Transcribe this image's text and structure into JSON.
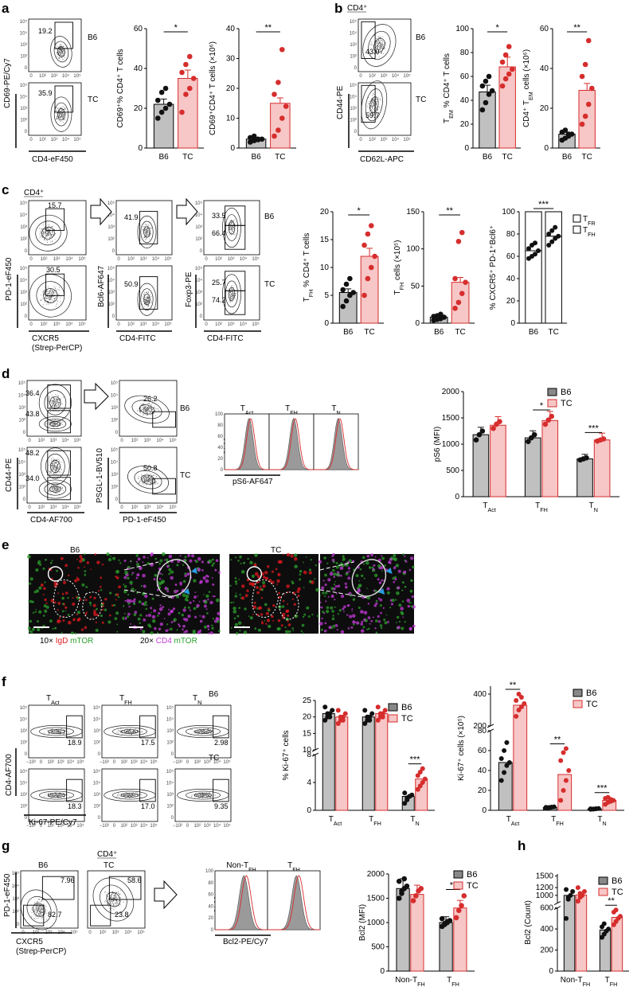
{
  "colors": {
    "b6": "#3b3b3b",
    "tc": "#d62d2d",
    "tcFill": "#f7c6c6",
    "b6Fill": "#c0c0c0",
    "igd": "#e0191f",
    "mtor": "#2ca02c",
    "cd4": "#c43ad8",
    "arrow": "#2a9de0"
  },
  "panel_labels": {
    "a": "a",
    "b": "b",
    "c": "c",
    "d": "d",
    "e": "e",
    "f": "f",
    "g": "g",
    "h": "h"
  },
  "groups": {
    "b6": "B6",
    "tc": "TC"
  },
  "flow_ticks": [
    "0",
    "10²",
    "10³",
    "10⁴",
    "10⁵"
  ],
  "flow_ticks_neg": [
    "−10²",
    "0",
    "10²",
    "10³",
    "10⁴",
    "10⁵"
  ],
  "panel_a": {
    "ylabel": "CD69-PE/Cy7",
    "xlabel": "CD4-eF450",
    "gate_b6": "19.2",
    "gate_tc": "35.9",
    "chart1": {
      "ylabel": "CD69⁺% CD4⁺ T cells",
      "yticks": [
        "0",
        "20",
        "40",
        "60"
      ],
      "sig": "*"
    },
    "chart2": {
      "ylabel": "CD69⁺CD4⁺ T cells (×10⁶)",
      "yticks": [
        "0",
        "10",
        "20",
        "30",
        "40"
      ],
      "sig": "**"
    }
  },
  "panel_b": {
    "header": "CD4⁺",
    "ylabel": "CD44-PE",
    "xlabel": "CD62L-APC",
    "gate_b6": "43.0",
    "gate_tc": "59.7",
    "chart1": {
      "ylabel": "T_EM % CD4⁺ T cells",
      "yticks": [
        "0",
        "20",
        "40",
        "60",
        "80",
        "100"
      ],
      "sig": "*"
    },
    "chart2": {
      "ylabel": "CD4⁺ T_EM cells (×10⁶)",
      "yticks": [
        "0",
        "20",
        "40",
        "60"
      ],
      "sig": "**"
    }
  },
  "panel_c": {
    "header": "CD4⁺",
    "plot1": {
      "ylabel": "PD-1-eF450",
      "xlabel": "CXCR5",
      "xlabel2": "(Strep-PerCP)",
      "gate_b6": "15.7",
      "gate_tc": "30.5"
    },
    "plot2": {
      "ylabel": "Bcl6-AF647",
      "xlabel": "CD4-FITC",
      "gate_b6": "41.9",
      "gate_tc": "50.9"
    },
    "plot3": {
      "ylabel": "Foxp3-PE",
      "xlabel": "CD4-FITC",
      "top_b6": "33.5",
      "bot_b6": "66.4",
      "top_tc": "25.7",
      "bot_tc": "74.2"
    },
    "chart1": {
      "ylabel": "T_FH % CD4⁺ T cells",
      "yticks": [
        "0",
        "5",
        "10",
        "15",
        "20"
      ],
      "sig": "*"
    },
    "chart2": {
      "ylabel": "T_FH cells (×10⁵)",
      "yticks": [
        "0",
        "50",
        "100",
        "150"
      ],
      "sig": "**"
    },
    "chart3": {
      "ylabel": "% CXCR5⁺ PD-1⁺Bcl6⁺",
      "yticks": [
        "0",
        "20",
        "40",
        "60",
        "80",
        "100"
      ],
      "sig": "***",
      "legend": [
        "T_FR",
        "T_FH"
      ]
    }
  },
  "panel_d": {
    "plot1": {
      "ylabel": "CD44-PE",
      "xlabel": "CD4-AF700",
      "top_b6": "36.4",
      "bot_b6": "43.8",
      "top_tc": "48.2",
      "bot_tc": "34.0"
    },
    "plot2": {
      "ylabel": "PSGL-1-BV510",
      "xlabel": "PD-1-eF450",
      "gate_b6": "26.2",
      "gate_tc": "50.8"
    },
    "hist": {
      "titles": [
        "T_Act",
        "T_FH",
        "T_N"
      ],
      "ylabel": "% Max",
      "xlabel": "pS6-AF647"
    },
    "chart": {
      "ylabel": "pS6 (MFI)",
      "yticks": [
        "0",
        "500",
        "1000",
        "1500",
        "2000"
      ],
      "categories": [
        "T_Act",
        "T_FH",
        "T_N"
      ],
      "sigs": [
        "*",
        "***"
      ]
    }
  },
  "panel_e": {
    "title_b6": "B6",
    "title_tc": "TC",
    "cap1": [
      "10×",
      "IgD",
      "mTOR"
    ],
    "cap2": [
      "20×",
      "CD4",
      "mTOR"
    ]
  },
  "panel_f": {
    "titles": [
      "T_Act",
      "T_FH",
      "T_N"
    ],
    "ylabel": "CD4-AF700",
    "xlabel": "Ki-67-PE/Cy7",
    "gates_b6": [
      "18.9",
      "17.5",
      "2.98"
    ],
    "gates_tc": [
      "18.3",
      "17.0",
      "9.35"
    ],
    "chart1": {
      "ylabel": "% Ki-67⁺ cells",
      "yticks_top": [
        "10",
        "15",
        "20",
        "25"
      ],
      "yticks_bot": [
        "0",
        "4",
        "8"
      ],
      "categories": [
        "T_Act",
        "T_FH",
        "T_N"
      ],
      "sigs": [
        "***"
      ]
    },
    "chart2": {
      "ylabel": "Ki-67⁺ cells (×10⁵)",
      "yticks_top": [
        "200",
        "400"
      ],
      "yticks_bot": [
        "0",
        "20",
        "40",
        "60",
        "80"
      ],
      "categories": [
        "T_Act",
        "T_FH",
        "T_N"
      ],
      "sigs": [
        "**",
        "**",
        "***"
      ]
    }
  },
  "panel_g": {
    "header": "CD4⁺",
    "ylabel": "PD-1-eF450",
    "xlabel": "CXCR5",
    "xlabel2": "(Strep-PerCP)",
    "gate_b6_top": "7.96",
    "gate_b6_bot": "82.7",
    "gate_tc_top": "58.6",
    "gate_tc_bot": "23.8",
    "hist": {
      "titles": [
        "Non-T_FH",
        "T_FH"
      ],
      "ylabel": "% Max",
      "xlabel": "Bcl2-PE/Cy7"
    },
    "chart": {
      "ylabel": "Bcl2 (MFI)",
      "yticks": [
        "0",
        "500",
        "1000",
        "1500",
        "2000"
      ],
      "categories": [
        "Non-T_FH",
        "T_FH"
      ],
      "sigs": [
        "**"
      ]
    }
  },
  "panel_h": {
    "chart": {
      "ylabel": "Bcl2 (Count)",
      "yticks_top": [
        "1000",
        "1200",
        "1500"
      ],
      "yticks_bot": [
        "0",
        "200",
        "400",
        "600"
      ],
      "categories": [
        "Non-T_FH",
        "T_FH"
      ],
      "sigs": [
        "**"
      ]
    }
  },
  "chart_data": [
    {
      "type": "bar",
      "panel": "a-1",
      "ylabel": "CD69⁺% CD4⁺ T cells",
      "ylim": [
        0,
        60
      ],
      "categories": [
        "B6",
        "TC"
      ],
      "values": [
        22,
        35
      ],
      "points": [
        [
          15,
          18,
          20,
          22,
          24,
          28,
          30
        ],
        [
          18,
          27,
          30,
          35,
          38,
          42,
          46
        ]
      ]
    },
    {
      "type": "bar",
      "panel": "a-2",
      "ylabel": "CD69⁺CD4⁺ T cells (×10⁶)",
      "ylim": [
        0,
        40
      ],
      "categories": [
        "B6",
        "TC"
      ],
      "values": [
        3,
        15
      ],
      "points": [
        [
          2,
          2.5,
          3,
          3,
          3.5,
          4,
          2.8
        ],
        [
          4,
          6,
          10,
          14,
          18,
          22,
          33
        ]
      ]
    },
    {
      "type": "bar",
      "panel": "b-1",
      "ylabel": "T_EM % CD4⁺ T cells",
      "ylim": [
        0,
        100
      ],
      "categories": [
        "B6",
        "TC"
      ],
      "values": [
        47,
        68
      ],
      "points": [
        [
          32,
          38,
          45,
          48,
          52,
          56,
          60
        ],
        [
          52,
          58,
          62,
          66,
          72,
          78,
          85
        ]
      ]
    },
    {
      "type": "bar",
      "panel": "b-2",
      "ylabel": "CD4⁺ T_EM cells (×10⁶)",
      "ylim": [
        0,
        60
      ],
      "categories": [
        "B6",
        "TC"
      ],
      "values": [
        7,
        29
      ],
      "points": [
        [
          4,
          5,
          6,
          7,
          8,
          9,
          7
        ],
        [
          12,
          16,
          22,
          30,
          36,
          42,
          54
        ]
      ]
    },
    {
      "type": "bar",
      "panel": "c-1",
      "ylabel": "T_FH % CD4⁺ T cells",
      "ylim": [
        0,
        20
      ],
      "categories": [
        "B6",
        "TC"
      ],
      "values": [
        5.5,
        12
      ],
      "points": [
        [
          3,
          4,
          5,
          5.5,
          6,
          7,
          8
        ],
        [
          5,
          8,
          10,
          12,
          14,
          16,
          17.5
        ]
      ]
    },
    {
      "type": "bar",
      "panel": "c-2",
      "ylabel": "T_FH cells (×10⁵)",
      "ylim": [
        0,
        150
      ],
      "categories": [
        "B6",
        "TC"
      ],
      "values": [
        8,
        55
      ],
      "points": [
        [
          4,
          5,
          6,
          8,
          9,
          10,
          12
        ],
        [
          20,
          28,
          40,
          55,
          60,
          110,
          122
        ]
      ]
    },
    {
      "type": "bar",
      "panel": "c-3",
      "ylabel": "% CXCR5⁺ PD-1⁺Bcl6⁺",
      "ylim": [
        0,
        100
      ],
      "categories": [
        "B6",
        "TC"
      ],
      "series": [
        {
          "name": "T_FH",
          "values": [
            65,
            78
          ]
        },
        {
          "name": "T_FR",
          "values": [
            35,
            22
          ]
        }
      ],
      "points": [
        [
          58,
          60,
          62,
          65,
          67,
          70,
          72
        ],
        [
          70,
          73,
          76,
          78,
          80,
          83,
          86
        ]
      ]
    },
    {
      "type": "bar",
      "panel": "d",
      "ylabel": "pS6 (MFI)",
      "ylim": [
        0,
        2000
      ],
      "categories": [
        "T_Act",
        "T_FH",
        "T_N"
      ],
      "series": [
        {
          "name": "B6",
          "values": [
            1180,
            1120,
            720
          ],
          "points": [
            [
              1080,
              1180,
              1250
            ],
            [
              1050,
              1120,
              1180
            ],
            [
              700,
              720,
              740
            ]
          ]
        },
        {
          "name": "TC",
          "values": [
            1360,
            1450,
            1080
          ],
          "points": [
            [
              1300,
              1380,
              1430
            ],
            [
              1380,
              1460,
              1530
            ],
            [
              1060,
              1080,
              1100
            ]
          ]
        }
      ]
    },
    {
      "type": "bar",
      "panel": "f-1",
      "ylabel": "% Ki-67⁺ cells",
      "categories": [
        "T_Act",
        "T_FH",
        "T_N"
      ],
      "series": [
        {
          "name": "B6",
          "values": [
            21,
            20,
            2
          ],
          "points": [
            [
              19,
              20,
              21,
              22,
              23,
              21,
              20
            ],
            [
              18,
              19,
              20,
              21,
              22,
              20,
              19
            ],
            [
              1,
              1.5,
              2,
              2.2,
              2.5,
              1.8,
              2
            ]
          ]
        },
        {
          "name": "TC",
          "values": [
            20,
            21,
            4.5
          ],
          "points": [
            [
              18,
              19,
              20,
              21,
              22,
              20,
              19
            ],
            [
              19,
              20,
              21,
              22,
              23,
              21,
              20
            ],
            [
              3,
              3.5,
              4,
              4.5,
              5,
              5.5,
              6
            ]
          ]
        }
      ]
    },
    {
      "type": "bar",
      "panel": "f-2",
      "ylabel": "Ki-67⁺ cells (×10⁵)",
      "categories": [
        "T_Act",
        "T_FH",
        "T_N"
      ],
      "series": [
        {
          "name": "B6",
          "values": [
            48,
            3,
            1.5
          ],
          "points": [
            [
              30,
              38,
              45,
              48,
              52,
              60,
              68
            ],
            [
              2,
              2.5,
              3,
              3.5,
              3,
              2.8,
              3.2
            ],
            [
              1,
              1.2,
              1.5,
              1.8,
              1.5,
              1.3,
              1.6
            ]
          ]
        },
        {
          "name": "TC",
          "values": [
            330,
            36,
            10
          ],
          "points": [
            [
              260,
              300,
              320,
              340,
              360,
              400,
              380
            ],
            [
              10,
              20,
              30,
              40,
              50,
              58,
              62
            ],
            [
              6,
              8,
              9,
              10,
              12,
              13,
              11
            ]
          ]
        }
      ]
    },
    {
      "type": "bar",
      "panel": "g",
      "ylabel": "Bcl2 (MFI)",
      "ylim": [
        0,
        2000
      ],
      "categories": [
        "Non-T_FH",
        "T_FH"
      ],
      "series": [
        {
          "name": "B6",
          "values": [
            1700,
            1000
          ],
          "points": [
            [
              1500,
              1600,
              1700,
              1750,
              1850,
              1650,
              1900
            ],
            [
              920,
              960,
              1000,
              1040,
              1080,
              980,
              1020
            ]
          ]
        },
        {
          "name": "TC",
          "values": [
            1580,
            1300
          ],
          "points": [
            [
              1450,
              1550,
              1650,
              1700
            ],
            [
              1100,
              1250,
              1350,
              1550
            ]
          ]
        }
      ]
    },
    {
      "type": "bar",
      "panel": "h",
      "ylabel": "Bcl2 (Count)",
      "categories": [
        "Non-T_FH",
        "T_FH"
      ],
      "series": [
        {
          "name": "B6",
          "values": [
            1000,
            390
          ],
          "points": [
            [
              500,
              900,
              1000,
              1100,
              1150,
              950
            ],
            [
              320,
              350,
              380,
              400,
              420,
              450
            ]
          ]
        },
        {
          "name": "TC",
          "values": [
            1010,
            510
          ],
          "points": [
            [
              850,
              950,
              1000,
              1100,
              1200,
              1050
            ],
            [
              440,
              470,
              500,
              520,
              560,
              580
            ]
          ]
        }
      ]
    }
  ]
}
